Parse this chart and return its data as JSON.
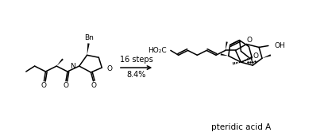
{
  "background_color": "#ffffff",
  "text_color": "#000000",
  "arrow_text1": "16 steps",
  "arrow_text2": "8.4%",
  "label_bottom": "pteridic acid A",
  "figsize": [
    4.14,
    1.76
  ],
  "dpi": 100
}
